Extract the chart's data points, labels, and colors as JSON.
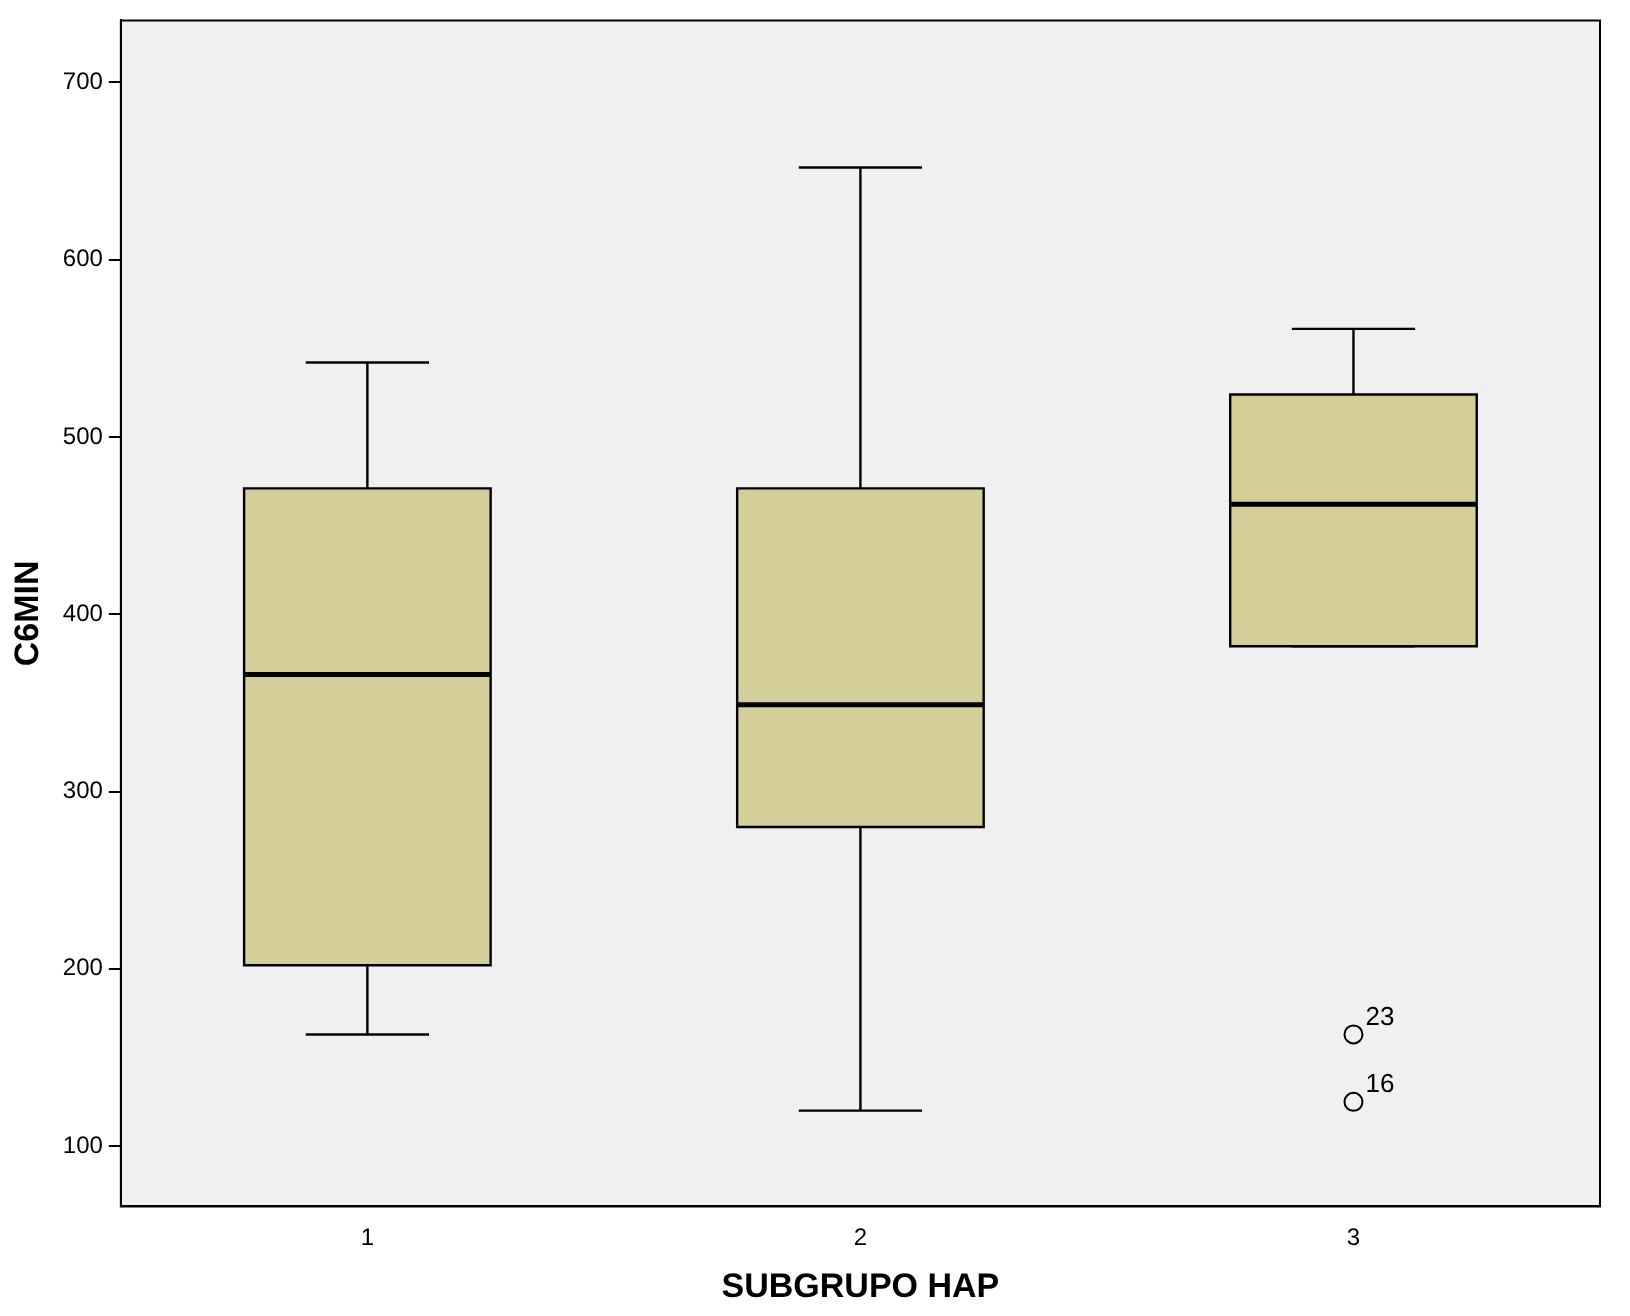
{
  "chart_data": {
    "type": "box",
    "categories": [
      "1",
      "2",
      "3"
    ],
    "xlabel": "SUBGRUPO HAP",
    "ylabel": "C6MIN",
    "ylim": [
      66,
      735
    ],
    "yticks": [
      100,
      200,
      300,
      400,
      500,
      600,
      700
    ],
    "grid": false,
    "legend": false,
    "color": "#d4cf99",
    "boxes": [
      {
        "low": 163,
        "q1": 202,
        "median": 366,
        "q3": 471,
        "high": 542
      },
      {
        "low": 120,
        "q1": 280,
        "median": 349,
        "q3": 471,
        "high": 652
      },
      {
        "low": 382,
        "q1": 382,
        "median": 462,
        "q3": 524,
        "high": 561,
        "outliers": [
          163,
          125
        ]
      }
    ],
    "annotations": [
      "23",
      "16"
    ]
  }
}
